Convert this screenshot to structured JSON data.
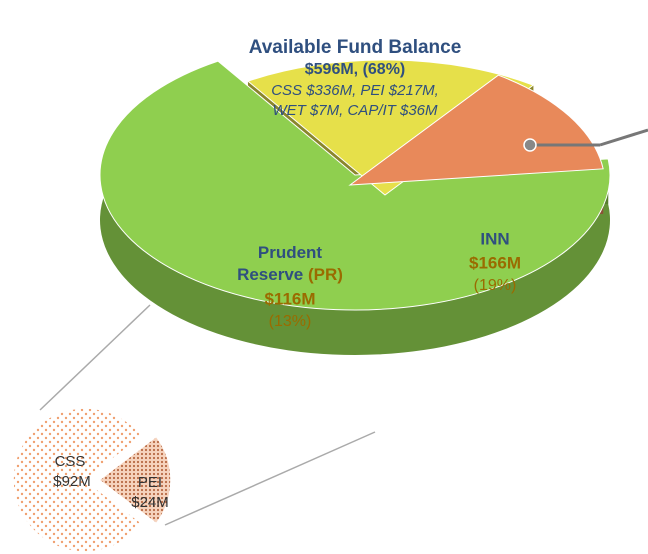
{
  "chart_data": [
    {
      "type": "pie",
      "categories": [
        "Available Fund Balance",
        "INN",
        "Prudent Reserve (PR)"
      ],
      "values": [
        596,
        166,
        116
      ],
      "value_labels": [
        "$596M, (68%)",
        "$166M",
        "$116M"
      ],
      "slice_notes": [
        "CSS $336M, PEI $217M, WET $7M, CAP/IT $36M",
        "(19%)",
        "(13%)"
      ],
      "colors": [
        "#8fcf4f",
        "#e6e04a",
        "#e8895a"
      ]
    },
    {
      "type": "pie",
      "categories": [
        "CSS",
        "PEI"
      ],
      "values": [
        92,
        24
      ],
      "value_labels": [
        "$92M",
        "$24M"
      ],
      "colors": [
        "#f3b08a",
        "#c9805a"
      ]
    }
  ]
}
